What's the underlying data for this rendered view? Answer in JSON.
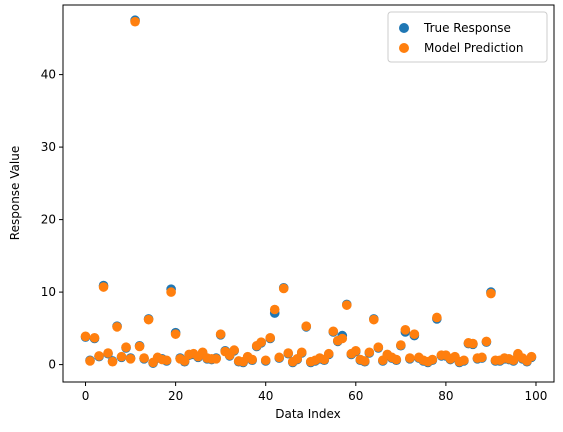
{
  "chart_data": {
    "type": "scatter",
    "title": "",
    "xlabel": "Data Index",
    "ylabel": "Response Value",
    "xlim": [
      -5,
      104
    ],
    "ylim": [
      -2.4,
      49.6
    ],
    "xticks": [
      0,
      20,
      40,
      60,
      80,
      100
    ],
    "yticks": [
      0,
      10,
      20,
      30,
      40
    ],
    "grid": false,
    "legend_position": "top-right",
    "series": [
      {
        "name": "True Response",
        "color": "#1f77b4",
        "x": [
          0,
          1,
          2,
          3,
          4,
          5,
          6,
          7,
          8,
          9,
          10,
          11,
          12,
          13,
          14,
          15,
          16,
          17,
          18,
          19,
          20,
          21,
          22,
          23,
          24,
          25,
          26,
          27,
          28,
          29,
          30,
          31,
          32,
          33,
          34,
          35,
          36,
          37,
          38,
          39,
          40,
          41,
          42,
          43,
          44,
          45,
          46,
          47,
          48,
          49,
          50,
          51,
          52,
          53,
          54,
          55,
          56,
          57,
          58,
          59,
          60,
          61,
          62,
          63,
          64,
          65,
          66,
          67,
          68,
          69,
          70,
          71,
          72,
          73,
          74,
          75,
          76,
          77,
          78,
          79,
          80,
          81,
          82,
          83,
          84,
          85,
          86,
          87,
          88,
          89,
          90,
          91,
          92,
          93,
          94,
          95,
          96,
          97,
          98,
          99
        ],
        "y": [
          3.8,
          0.6,
          3.6,
          1.1,
          10.9,
          1.5,
          0.5,
          5.3,
          1.0,
          2.3,
          0.9,
          47.5,
          2.6,
          0.8,
          6.3,
          0.2,
          0.9,
          0.8,
          0.5,
          10.4,
          4.4,
          0.9,
          0.4,
          1.3,
          1.4,
          1.0,
          1.6,
          0.8,
          0.7,
          0.9,
          4.1,
          1.9,
          1.2,
          1.9,
          0.4,
          0.3,
          1.0,
          0.6,
          2.5,
          3.0,
          0.5,
          3.6,
          7.1,
          0.9,
          10.6,
          1.5,
          0.3,
          0.7,
          1.6,
          5.2,
          0.3,
          0.5,
          0.8,
          0.6,
          1.4,
          4.5,
          3.2,
          4.0,
          8.3,
          1.4,
          1.8,
          0.6,
          0.4,
          1.6,
          6.3,
          2.3,
          0.5,
          1.3,
          0.9,
          0.6,
          2.6,
          4.5,
          0.8,
          4.0,
          0.9,
          0.5,
          0.3,
          0.6,
          6.3,
          1.2,
          1.2,
          0.7,
          1.0,
          0.3,
          0.5,
          2.9,
          2.8,
          0.8,
          0.9,
          3.1,
          10.0,
          0.5,
          0.5,
          0.8,
          0.7,
          0.5,
          1.4,
          0.8,
          0.4,
          1.0
        ]
      },
      {
        "name": "Model Prediction",
        "color": "#ff7f0e",
        "x": [
          0,
          1,
          2,
          3,
          4,
          5,
          6,
          7,
          8,
          9,
          10,
          11,
          12,
          13,
          14,
          15,
          16,
          17,
          18,
          19,
          20,
          21,
          22,
          23,
          24,
          25,
          26,
          27,
          28,
          29,
          30,
          31,
          32,
          33,
          34,
          35,
          36,
          37,
          38,
          39,
          40,
          41,
          42,
          43,
          44,
          45,
          46,
          47,
          48,
          49,
          50,
          51,
          52,
          53,
          54,
          55,
          56,
          57,
          58,
          59,
          60,
          61,
          62,
          63,
          64,
          65,
          66,
          67,
          68,
          69,
          70,
          71,
          72,
          73,
          74,
          75,
          76,
          77,
          78,
          79,
          80,
          81,
          82,
          83,
          84,
          85,
          86,
          87,
          88,
          89,
          90,
          91,
          92,
          93,
          94,
          95,
          96,
          97,
          98,
          99
        ],
        "y": [
          3.9,
          0.5,
          3.7,
          1.2,
          10.7,
          1.6,
          0.4,
          5.2,
          1.1,
          2.4,
          0.8,
          47.3,
          2.5,
          0.9,
          6.2,
          0.3,
          1.0,
          0.7,
          0.6,
          10.0,
          4.2,
          0.8,
          0.5,
          1.4,
          1.5,
          1.1,
          1.7,
          0.9,
          0.8,
          0.8,
          4.2,
          1.8,
          1.3,
          2.0,
          0.5,
          0.4,
          1.1,
          0.7,
          2.6,
          3.1,
          0.6,
          3.7,
          7.6,
          1.0,
          10.5,
          1.6,
          0.4,
          0.8,
          1.7,
          5.3,
          0.4,
          0.6,
          0.9,
          0.7,
          1.5,
          4.6,
          3.3,
          3.6,
          8.2,
          1.5,
          1.9,
          0.7,
          0.5,
          1.7,
          6.2,
          2.4,
          0.6,
          1.4,
          1.0,
          0.7,
          2.7,
          4.8,
          0.9,
          4.2,
          1.0,
          0.6,
          0.4,
          0.7,
          6.5,
          1.3,
          1.3,
          0.8,
          1.1,
          0.4,
          0.6,
          3.0,
          2.9,
          0.9,
          1.0,
          3.2,
          9.8,
          0.6,
          0.6,
          0.9,
          0.8,
          0.6,
          1.5,
          0.9,
          0.5,
          1.1
        ]
      }
    ]
  }
}
